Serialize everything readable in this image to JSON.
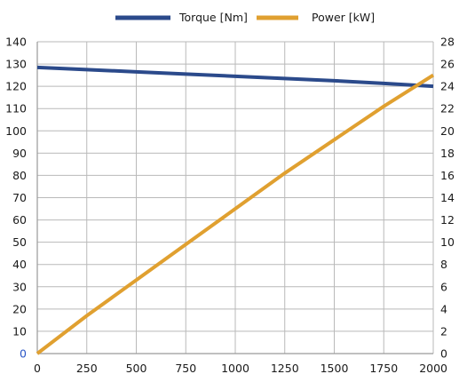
{
  "chart_data": {
    "type": "line",
    "title": "",
    "xlabel": "",
    "ylabel": "",
    "y2label": "",
    "x_ticks": [
      0,
      250,
      500,
      750,
      1000,
      1250,
      1500,
      1750,
      2000
    ],
    "y_left_ticks": [
      0,
      10,
      20,
      30,
      40,
      50,
      60,
      70,
      80,
      90,
      100,
      110,
      120,
      130,
      140
    ],
    "y_right_ticks": [
      0,
      2,
      4,
      6,
      8,
      10,
      12,
      14,
      16,
      18,
      20,
      22,
      24,
      26,
      28
    ],
    "xlim": [
      0,
      2000
    ],
    "ylim_left": [
      0,
      140
    ],
    "ylim_right": [
      0,
      28
    ],
    "grid": true,
    "legend_position": "top-center",
    "series": [
      {
        "name": "Torque [Nm]",
        "axis": "left",
        "color": "#2b4a8b",
        "x": [
          0,
          250,
          500,
          750,
          1000,
          1250,
          1500,
          1750,
          2000
        ],
        "values": [
          128.5,
          127.5,
          126.5,
          125.5,
          124.5,
          123.5,
          122.5,
          121.3,
          120
        ]
      },
      {
        "name": "Power [kW]",
        "axis": "right",
        "color": "#e0a030",
        "x": [
          0,
          250,
          500,
          750,
          1000,
          1250,
          1500,
          1750,
          2000
        ],
        "values": [
          0,
          3.4,
          6.6,
          9.8,
          13.0,
          16.2,
          19.2,
          22.2,
          25
        ]
      }
    ]
  }
}
